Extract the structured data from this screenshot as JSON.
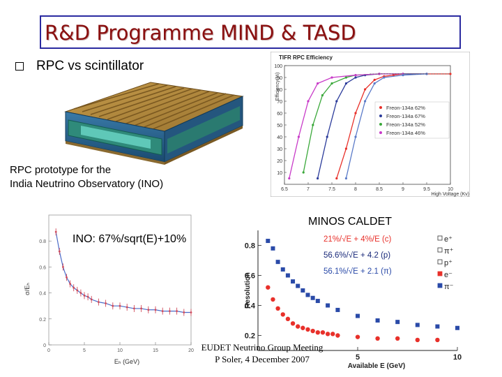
{
  "title": "R&D Programme MIND & TASD",
  "subtitle": "RPC vs scintillator",
  "rpc_caption": {
    "line1": "RPC prototype for the",
    "line2": "India Neutrino Observatory (INO)"
  },
  "minos_label": "MINOS CALDET",
  "ino_label": "INO: 67%/sqrt(E)+10%",
  "footer": {
    "line1": "EUDET Neutrino Group Meeting",
    "line2": "P Soler, 4 December 2007"
  },
  "colors": {
    "title": "#8a1010",
    "title_border": "#2a2aa0",
    "legend_red": "#e8302a",
    "legend_blue": "#2a4aa8"
  },
  "icons": {
    "bullet": "hollow-square-bullet"
  },
  "chart_data": [
    {
      "type": "line",
      "title": "TIFR RPC Efficiency",
      "xlabel": "High Voltage (Kv)",
      "ylabel": "Efficiency(%)",
      "xlim": [
        6.5,
        10
      ],
      "ylim": [
        0,
        100
      ],
      "x_ticks": [
        "6.5",
        "7",
        "7.5",
        "8",
        "8.5",
        "9",
        "9.5",
        "10"
      ],
      "y_ticks": [
        "10",
        "20",
        "30",
        "40",
        "50",
        "60",
        "70",
        "80",
        "90",
        "100"
      ],
      "legend_position": "right",
      "series": [
        {
          "name": "Freon-134a 62%",
          "color": "#e8302a",
          "x": [
            7.6,
            7.8,
            8.0,
            8.2,
            8.4,
            8.6,
            8.8,
            9.0,
            9.5,
            10.0
          ],
          "y": [
            5,
            30,
            60,
            80,
            88,
            91,
            92,
            93,
            93,
            93
          ]
        },
        {
          "name": "Freon-134a 67%",
          "color": "#2a3a9a",
          "x": [
            7.2,
            7.4,
            7.6,
            7.8,
            8.0,
            8.2,
            8.5,
            9.0,
            9.5
          ],
          "y": [
            5,
            40,
            70,
            85,
            90,
            92,
            93,
            93,
            93
          ]
        },
        {
          "name": "Freon-134a 52%",
          "color": "#3aa83a",
          "x": [
            6.9,
            7.1,
            7.3,
            7.5,
            7.8,
            8.0,
            8.5,
            9.0
          ],
          "y": [
            10,
            50,
            75,
            85,
            90,
            92,
            93,
            93
          ]
        },
        {
          "name": "Freon-134a 46%",
          "color": "#c83ac8",
          "x": [
            6.6,
            6.8,
            7.0,
            7.2,
            7.5,
            8.0,
            8.5,
            9.0
          ],
          "y": [
            5,
            40,
            70,
            85,
            90,
            92,
            93,
            93
          ]
        }
      ],
      "series_extra": {
        "name": "",
        "color": "#5a7ac8",
        "x": [
          7.8,
          8.0,
          8.2,
          8.4,
          8.6,
          9.0,
          9.5
        ],
        "y": [
          5,
          40,
          70,
          85,
          90,
          92,
          93
        ]
      }
    },
    {
      "type": "scatter",
      "title": "",
      "xlabel": "Eₕ (GeV)",
      "ylabel": "σ/Eₕ",
      "xlim": [
        0,
        20
      ],
      "ylim": [
        0,
        1.0
      ],
      "x_ticks": [
        "0",
        "5",
        "10",
        "15",
        "20"
      ],
      "y_ticks": [
        "0",
        "0.2",
        "0.4",
        "0.6",
        "0.8"
      ],
      "x": [
        1,
        1.5,
        2,
        2.5,
        3,
        3.5,
        4,
        4.5,
        5,
        5.5,
        6,
        7,
        8,
        9,
        10,
        11,
        12,
        13,
        14,
        15,
        16,
        17,
        18,
        19,
        20
      ],
      "y": [
        0.87,
        0.72,
        0.6,
        0.52,
        0.47,
        0.44,
        0.42,
        0.4,
        0.38,
        0.37,
        0.35,
        0.33,
        0.32,
        0.3,
        0.3,
        0.29,
        0.28,
        0.28,
        0.27,
        0.27,
        0.26,
        0.26,
        0.26,
        0.25,
        0.25
      ]
    },
    {
      "type": "scatter",
      "title": "",
      "xlabel": "Available E (GeV)",
      "ylabel": "Resolution",
      "xlim": [
        0,
        10
      ],
      "ylim": [
        0.1,
        0.9
      ],
      "x_ticks": [
        "5",
        "10"
      ],
      "y_ticks": [
        "0.2",
        "0.4",
        "0.6",
        "0.8"
      ],
      "legend_position": "right",
      "fits": [
        {
          "label": "21%/√E + 4%/E (c)",
          "color": "#e8302a"
        },
        {
          "label": "56.6%/√E + 4.2 (p)",
          "color": "#1a2a7a"
        },
        {
          "label": "56.1%/√E + 2.1 (π)",
          "color": "#2a4aa8"
        }
      ],
      "legend_items": [
        "e⁺",
        "π⁺",
        "p⁺",
        "e⁻",
        "π⁻"
      ],
      "series": [
        {
          "name": "e",
          "color": "#e8302a",
          "x": [
            0.5,
            0.75,
            1,
            1.25,
            1.5,
            1.75,
            2,
            2.25,
            2.5,
            2.75,
            3,
            3.25,
            3.5,
            3.75,
            4,
            5,
            6,
            7,
            8,
            9
          ],
          "y": [
            0.52,
            0.44,
            0.38,
            0.34,
            0.31,
            0.28,
            0.26,
            0.25,
            0.24,
            0.23,
            0.22,
            0.22,
            0.21,
            0.21,
            0.2,
            0.19,
            0.18,
            0.18,
            0.17,
            0.17
          ]
        },
        {
          "name": "π/p",
          "color": "#2a4aa8",
          "x": [
            0.5,
            0.75,
            1,
            1.25,
            1.5,
            1.75,
            2,
            2.25,
            2.5,
            2.75,
            3,
            3.5,
            4,
            5,
            6,
            7,
            8,
            9,
            10
          ],
          "y": [
            0.83,
            0.78,
            0.69,
            0.64,
            0.6,
            0.56,
            0.53,
            0.5,
            0.47,
            0.45,
            0.43,
            0.4,
            0.37,
            0.33,
            0.3,
            0.29,
            0.27,
            0.26,
            0.25
          ]
        }
      ]
    }
  ]
}
